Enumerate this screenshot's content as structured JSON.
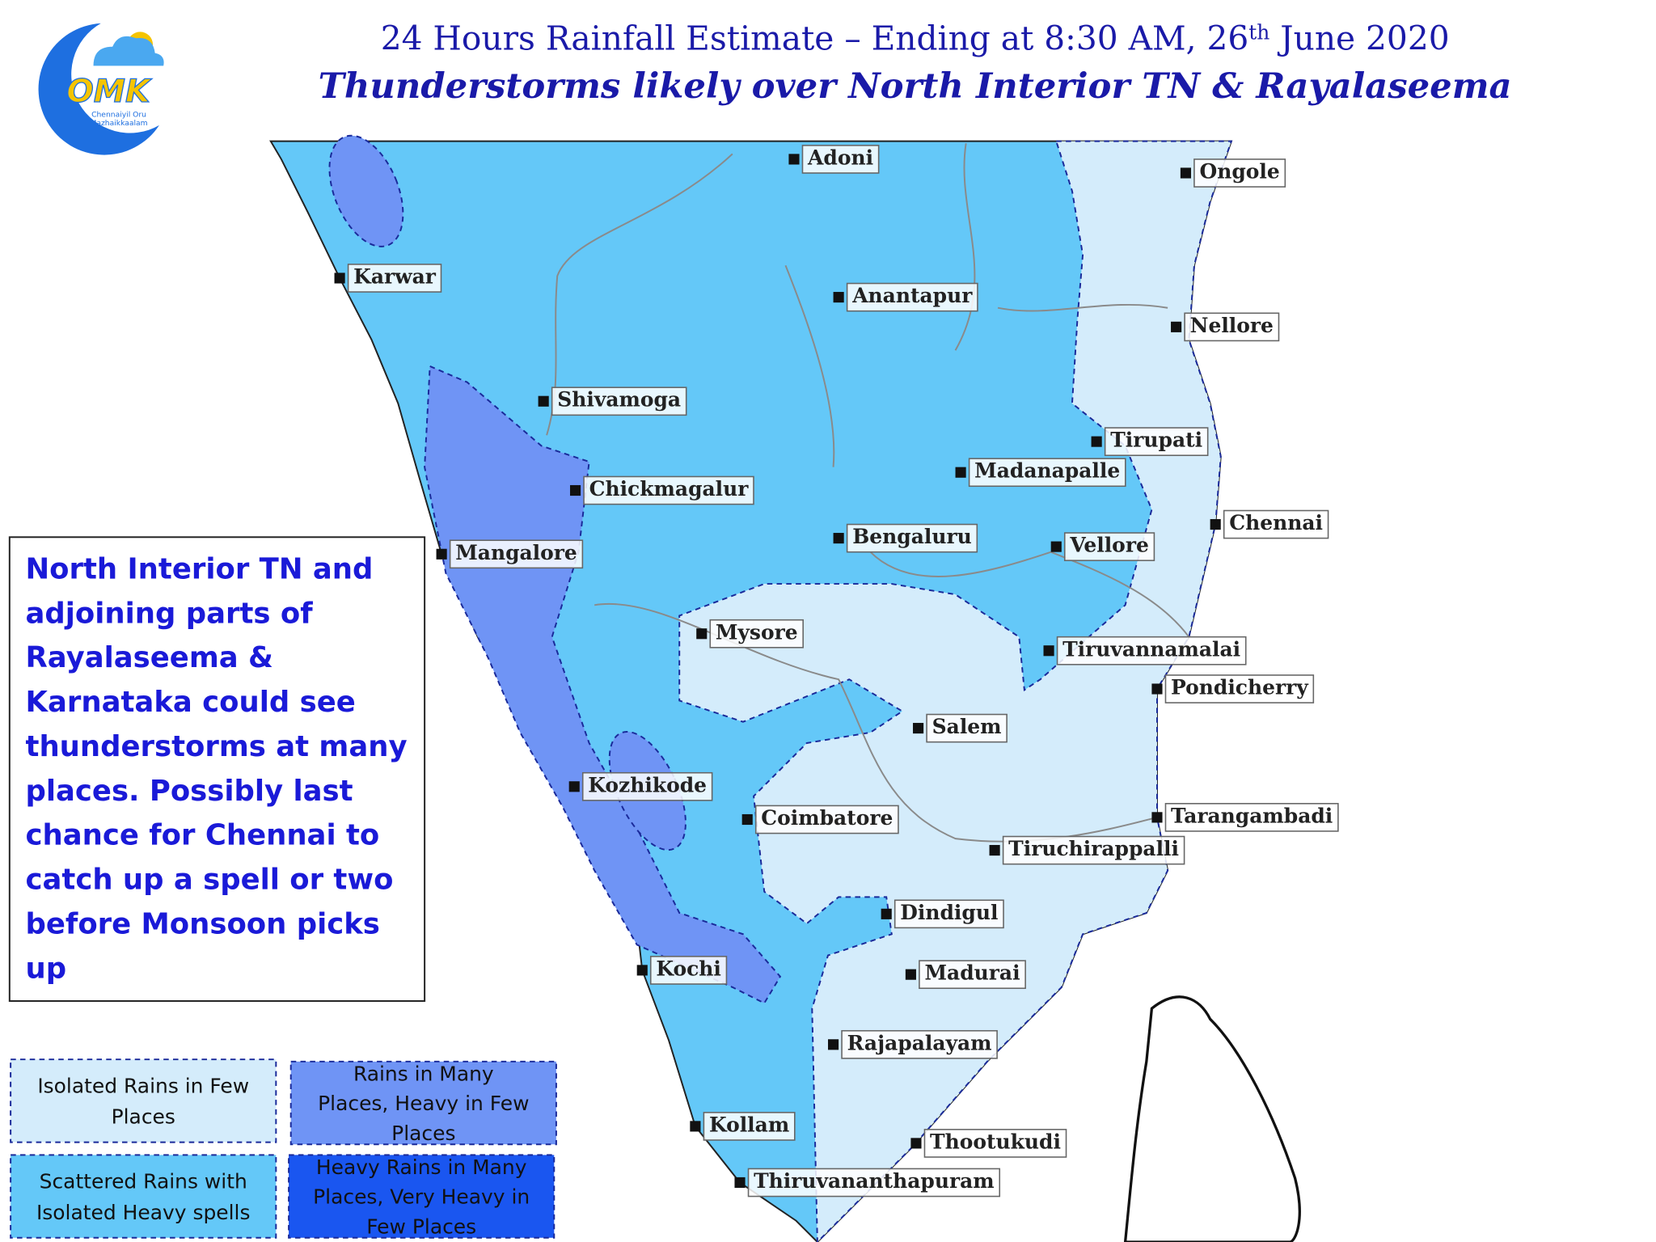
{
  "header": {
    "title": {
      "text_before": "24 Hours Rainfall Estimate – Ending at 8:30 AM, 26",
      "superscript": "th",
      "text_after": " June 2020"
    },
    "subtitle": "Thunderstorms likely over North Interior TN & Rayalaseema"
  },
  "logo": {
    "mark": "OMK",
    "tagline_lines": [
      "Chennaiyil Oru",
      "Mazhaikkaalam"
    ]
  },
  "note": {
    "lines": [
      "North Interior TN and",
      "adjoining parts of",
      "Rayalaseema  &",
      "Karnataka could see",
      "thunderstorms at many",
      "places.  Possibly last",
      "chance for Chennai to",
      "catch up a spell or two",
      "before Monsoon picks",
      "up"
    ]
  },
  "cities": [
    "Adoni",
    "Ongole",
    "Karwar",
    "Anantapur",
    "Nellore",
    "Shivamoga",
    "Tirupati",
    "Madanapalle",
    "Chickmagalur",
    "Chennai",
    "Bengaluru",
    "Vellore",
    "Mangalore",
    "Mysore",
    "Tiruvannamalai",
    "Pondicherry",
    "Salem",
    "Kozhikode",
    "Coimbatore",
    "Tarangambadi",
    "Tiruchirappalli",
    "Dindigul",
    "Madurai",
    "Kochi",
    "Rajapalayam",
    "Kollam",
    "Thootukudi",
    "Thiruvananthapuram"
  ],
  "legend": [
    {
      "lines": [
        "Isolated Rains in Few",
        "Places"
      ]
    },
    {
      "lines": [
        "Rains in Many",
        "Places, Heavy in Few",
        "Places"
      ]
    },
    {
      "lines": [
        "Scattered Rains with",
        "Isolated Heavy spells"
      ]
    },
    {
      "lines": [
        "Heavy Rains in Many",
        "Places, Very Heavy in",
        "Few Places"
      ]
    }
  ]
}
